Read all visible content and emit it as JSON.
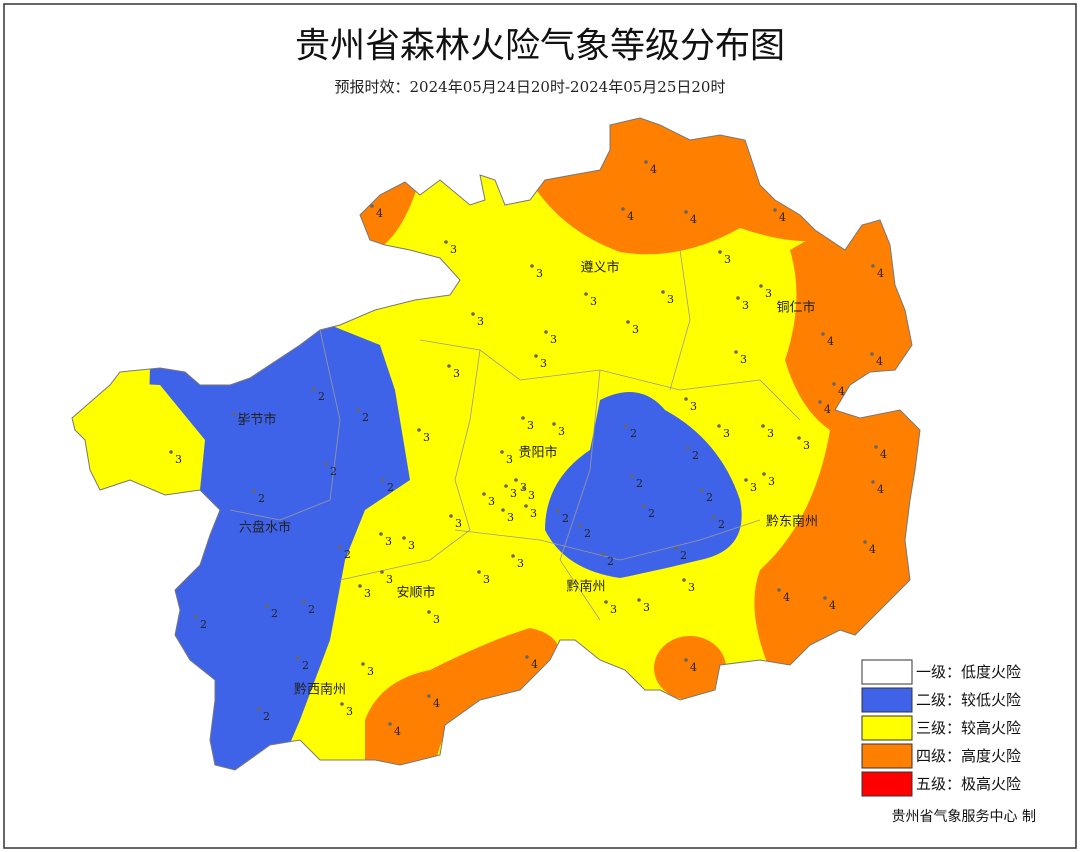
{
  "header": {
    "title": "贵州省森林火险气象等级分布图",
    "subtitle": "预报时效：2024年05月24日20时-2024年05月25日20时"
  },
  "cities": [
    "遵义市",
    "铜仁市",
    "毕节市",
    "贵阳市",
    "六盘水市",
    "黔东南州",
    "安顺市",
    "黔南州",
    "黔西南州"
  ],
  "stations": [
    4,
    4,
    4,
    4,
    4,
    3,
    3,
    3,
    3,
    3,
    3,
    3,
    3,
    3,
    3,
    3,
    3,
    3,
    3,
    3,
    3,
    3,
    3,
    3,
    3,
    3,
    3,
    3,
    3,
    3,
    3,
    3,
    3,
    3,
    3,
    3,
    3,
    3,
    3,
    3,
    3,
    3,
    3,
    3,
    3,
    3,
    3,
    3,
    2,
    2,
    2,
    2,
    2,
    2,
    2,
    2,
    2,
    2,
    2,
    2,
    2,
    2,
    2,
    2,
    2,
    2,
    2,
    2,
    2,
    2,
    4,
    4,
    4,
    4,
    4,
    4,
    4,
    4,
    4,
    4,
    4,
    4,
    4,
    4
  ],
  "legend": [
    {
      "label": "一级：低度火险",
      "color": "#ffffff"
    },
    {
      "label": "二级：较低火险",
      "color": "#3f63e8"
    },
    {
      "label": "三级：较高火险",
      "color": "#ffff00"
    },
    {
      "label": "四级：高度火险",
      "color": "#ff7f00"
    },
    {
      "label": "五级：极高火险",
      "color": "#ff0000"
    }
  ],
  "credit": "贵州省气象服务中心  制"
}
